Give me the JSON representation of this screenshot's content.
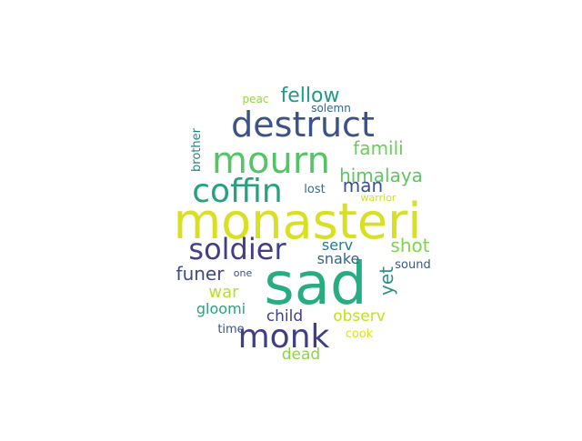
{
  "words": [
    {
      "text": "monasteri",
      "color": "#d9e022"
    },
    {
      "text": "sad",
      "color": "#27ad81"
    },
    {
      "text": "destruct",
      "color": "#3b5388"
    },
    {
      "text": "mourn",
      "color": "#55c467"
    },
    {
      "text": "coffin",
      "color": "#26a17f"
    },
    {
      "text": "soldier",
      "color": "#433e85"
    },
    {
      "text": "monk",
      "color": "#3f3f86"
    },
    {
      "text": "fellow",
      "color": "#1f9a8a"
    },
    {
      "text": "famili",
      "color": "#6ccd5a"
    },
    {
      "text": "himalaya",
      "color": "#5bc862"
    },
    {
      "text": "man",
      "color": "#3b5288"
    },
    {
      "text": "shot",
      "color": "#7fd34e"
    },
    {
      "text": "funer",
      "color": "#3e4a89"
    },
    {
      "text": "serv",
      "color": "#2a788e"
    },
    {
      "text": "snake",
      "color": "#33638d"
    },
    {
      "text": "yet",
      "color": "#2e8f8b"
    },
    {
      "text": "war",
      "color": "#b8de29"
    },
    {
      "text": "gloomi",
      "color": "#2aa47e"
    },
    {
      "text": "child",
      "color": "#404387"
    },
    {
      "text": "observ",
      "color": "#c2df23"
    },
    {
      "text": "time",
      "color": "#3a548c"
    },
    {
      "text": "cook",
      "color": "#dde318"
    },
    {
      "text": "dead",
      "color": "#8cd646"
    },
    {
      "text": "lost",
      "color": "#2e6e8e"
    },
    {
      "text": "warrior",
      "color": "#d0e11c"
    },
    {
      "text": "brother",
      "color": "#26828e"
    },
    {
      "text": "peac",
      "color": "#90d743"
    },
    {
      "text": "solemn",
      "color": "#31688e"
    },
    {
      "text": "one",
      "color": "#3e4c8a"
    },
    {
      "text": "sound",
      "color": "#39568c"
    }
  ]
}
